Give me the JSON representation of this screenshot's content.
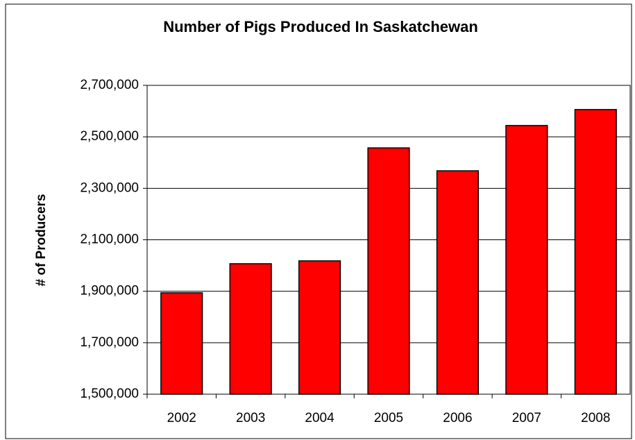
{
  "chart_data": {
    "type": "bar",
    "title": "Number of Pigs Produced In Saskatchewan",
    "y_label": "# of Producers",
    "categories": [
      "2002",
      "2003",
      "2004",
      "2005",
      "2006",
      "2007",
      "2008"
    ],
    "values": [
      1894000,
      2007000,
      2018000,
      2457000,
      2368000,
      2544000,
      2606000
    ],
    "color": "#ff0000",
    "ylim": [
      1500000,
      2700000
    ],
    "yticks": [
      {
        "value": 1500000,
        "label": "1,500,000"
      },
      {
        "value": 1700000,
        "label": "1,700,000"
      },
      {
        "value": 1900000,
        "label": "1,900,000"
      },
      {
        "value": 2100000,
        "label": "2,100,000"
      },
      {
        "value": 2300000,
        "label": "2,300,000"
      },
      {
        "value": 2500000,
        "label": "2,500,000"
      },
      {
        "value": 2700000,
        "label": "2,700,000"
      }
    ],
    "grid": true
  }
}
